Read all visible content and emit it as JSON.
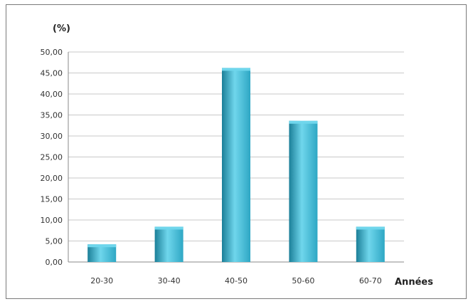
{
  "chart_data": {
    "type": "bar",
    "categories": [
      "20-30",
      "30-40",
      "40-50",
      "50-60",
      "60-70"
    ],
    "values": [
      4.2,
      8.4,
      46.2,
      33.6,
      8.4
    ],
    "title": "",
    "ylabel": "(%)",
    "xlabel": "Années",
    "ylim": [
      0,
      50
    ],
    "yticks": [
      "0,00",
      "5,00",
      "10,00",
      "15,00",
      "20,00",
      "25,00",
      "30,00",
      "35,00",
      "40,00",
      "45,00",
      "50,00"
    ],
    "grid": true,
    "legend": "none",
    "colors": {
      "bar": "#2ea7c4",
      "bar_light": "#6fd6ec",
      "bar_dark": "#1b7f98"
    }
  }
}
